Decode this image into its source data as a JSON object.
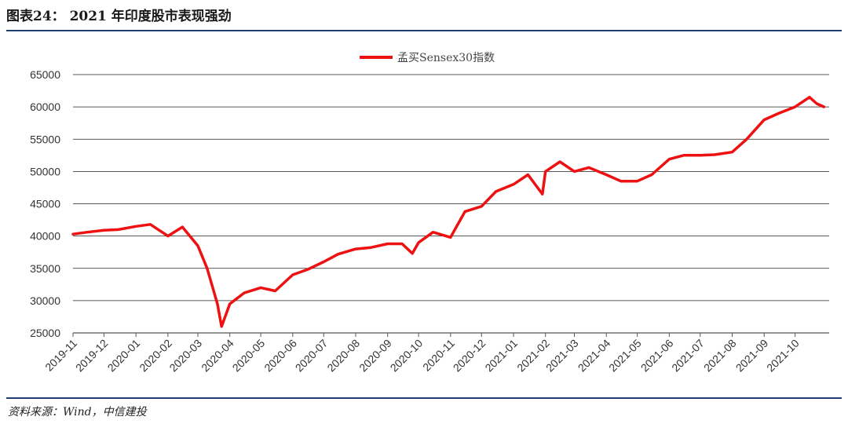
{
  "header": {
    "title": "图表24：  2021 年印度股市表现强劲"
  },
  "footer": {
    "source": "资料来源：Wind，中信建投"
  },
  "chart_data": {
    "type": "line",
    "title": "",
    "xlabel": "",
    "ylabel": "",
    "ylim": [
      25000,
      65000
    ],
    "yticks": [
      25000,
      30000,
      35000,
      40000,
      45000,
      50000,
      55000,
      60000,
      65000
    ],
    "xticks": [
      "2019-11",
      "2019-12",
      "2020-01",
      "2020-02",
      "2020-03",
      "2020-04",
      "2020-05",
      "2020-06",
      "2020-07",
      "2020-08",
      "2020-09",
      "2020-10",
      "2020-11",
      "2020-12",
      "2021-01",
      "2021-02",
      "2021-03",
      "2021-04",
      "2021-05",
      "2021-06",
      "2021-07",
      "2021-08",
      "2021-09",
      "2021-10"
    ],
    "grid": "horizontal",
    "legend_position": "top-center",
    "series_color": "#ee1111",
    "series": [
      {
        "name": "孟买Sensex30指数",
        "x": [
          "2019-11-01",
          "2019-11-15",
          "2019-12-01",
          "2019-12-15",
          "2020-01-01",
          "2020-01-15",
          "2020-02-01",
          "2020-02-15",
          "2020-03-01",
          "2020-03-10",
          "2020-03-20",
          "2020-03-24",
          "2020-04-01",
          "2020-04-15",
          "2020-05-01",
          "2020-05-15",
          "2020-06-01",
          "2020-06-15",
          "2020-07-01",
          "2020-07-15",
          "2020-08-01",
          "2020-08-15",
          "2020-09-01",
          "2020-09-15",
          "2020-09-25",
          "2020-10-01",
          "2020-10-15",
          "2020-11-01",
          "2020-11-15",
          "2020-12-01",
          "2020-12-15",
          "2021-01-01",
          "2021-01-15",
          "2021-01-29",
          "2021-02-01",
          "2021-02-15",
          "2021-03-01",
          "2021-03-15",
          "2021-04-01",
          "2021-04-15",
          "2021-05-01",
          "2021-05-15",
          "2021-06-01",
          "2021-06-15",
          "2021-07-01",
          "2021-07-15",
          "2021-08-01",
          "2021-08-15",
          "2021-09-01",
          "2021-09-15",
          "2021-10-01",
          "2021-10-15",
          "2021-10-22",
          "2021-10-29"
        ],
        "values": [
          40300,
          40600,
          40900,
          41000,
          41500,
          41800,
          40000,
          41400,
          38500,
          35000,
          29500,
          26000,
          29500,
          31200,
          32000,
          31500,
          34000,
          34800,
          36000,
          37200,
          38000,
          38200,
          38800,
          38800,
          37300,
          39000,
          40600,
          39800,
          43800,
          44600,
          46900,
          48000,
          49500,
          46500,
          50000,
          51500,
          50000,
          50600,
          49500,
          48500,
          48500,
          49500,
          51900,
          52500,
          52500,
          52600,
          53000,
          55000,
          58000,
          59000,
          60000,
          61500,
          60500,
          60000
        ]
      }
    ]
  }
}
